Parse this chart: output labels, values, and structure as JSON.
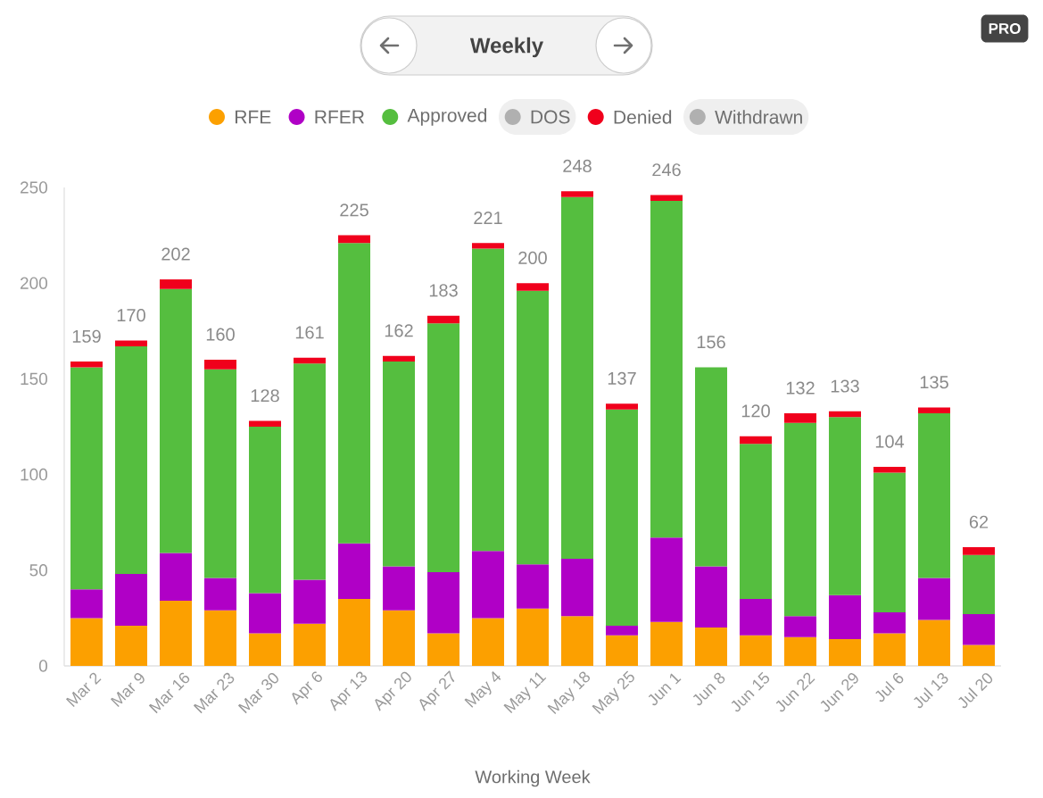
{
  "chart_data": {
    "type": "bar",
    "title": "Weekly",
    "xlabel": "Working Week",
    "annotations": [
      "PRO"
    ],
    "categories": [
      "Mar 2",
      "Mar 9",
      "Mar 16",
      "Mar 23",
      "Mar 30",
      "Apr 6",
      "Apr 13",
      "Apr 20",
      "Apr 27",
      "May 4",
      "May 11",
      "May 18",
      "May 25",
      "Jun 1",
      "Jun 8",
      "Jun 15",
      "Jun 22",
      "Jun 29",
      "Jul 6",
      "Jul 13",
      "Jul 20"
    ],
    "series": [
      {
        "name": "RFE",
        "color": "#fca000",
        "values": [
          25,
          21,
          34,
          29,
          17,
          22,
          35,
          29,
          17,
          25,
          30,
          26,
          16,
          23,
          20,
          16,
          15,
          14,
          17,
          24,
          11
        ]
      },
      {
        "name": "RFER",
        "color": "#b000c6",
        "values": [
          15,
          27,
          25,
          17,
          21,
          23,
          29,
          23,
          32,
          35,
          23,
          30,
          5,
          44,
          32,
          19,
          11,
          23,
          11,
          22,
          16
        ]
      },
      {
        "name": "Approved",
        "color": "#55be3f",
        "values": [
          116,
          119,
          138,
          109,
          87,
          113,
          157,
          107,
          130,
          158,
          143,
          189,
          113,
          176,
          104,
          81,
          101,
          93,
          73,
          86,
          31
        ]
      },
      {
        "name": "DOS",
        "color": "#b0b0b0",
        "values": [
          null,
          null,
          null,
          null,
          null,
          null,
          null,
          null,
          null,
          null,
          null,
          null,
          null,
          null,
          null,
          null,
          null,
          null,
          null,
          null,
          null
        ]
      },
      {
        "name": "Denied",
        "color": "#f0001c",
        "values": [
          3,
          3,
          5,
          5,
          3,
          3,
          4,
          3,
          4,
          3,
          4,
          3,
          3,
          3,
          null,
          4,
          5,
          3,
          3,
          3,
          4
        ]
      },
      {
        "name": "Withdrawn",
        "color": "#b0b0b0",
        "values": [
          null,
          null,
          null,
          null,
          null,
          null,
          null,
          null,
          null,
          null,
          null,
          null,
          null,
          null,
          null,
          null,
          null,
          null,
          null,
          null,
          null
        ]
      }
    ],
    "stacked": true,
    "ylim": [
      0,
      250
    ],
    "yticks": [
      0,
      50,
      100,
      150,
      200,
      250
    ],
    "totals": [
      "159",
      "170",
      "202",
      "160",
      "128",
      "161",
      "225",
      "162",
      "183",
      "221",
      "200",
      "248",
      "137",
      "246",
      "156",
      "120",
      "132",
      "133",
      "104",
      "135",
      "62"
    ],
    "legend": "top"
  }
}
